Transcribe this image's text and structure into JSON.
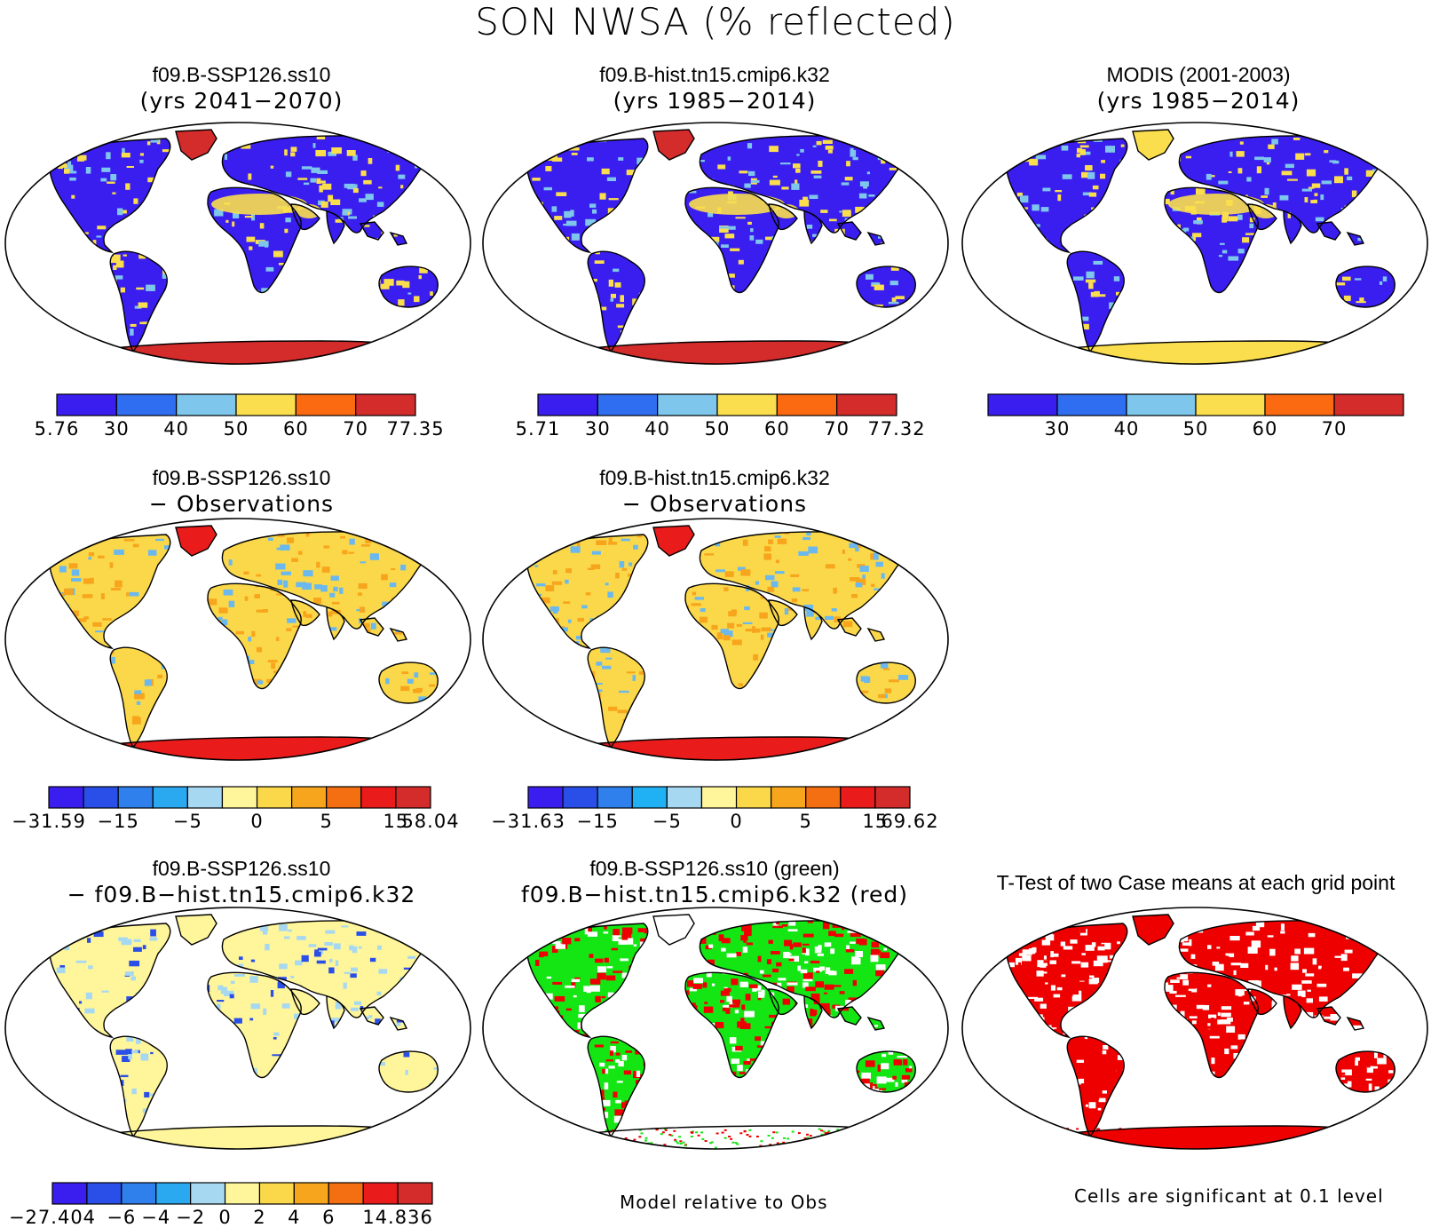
{
  "figure": {
    "title": "SON NWSA (% reflected)"
  },
  "colors": {
    "abs": [
      "#3a1ef0",
      "#2f6ef0",
      "#7ec6ec",
      "#fbde4d",
      "#fb6a10",
      "#d42b2b"
    ],
    "diff": [
      "#3a1ef0",
      "#2a4ee8",
      "#2f80ec",
      "#2aa8f0",
      "#a6d8f2",
      "#fff59a",
      "#fbd84a",
      "#f7a51c",
      "#f46f12",
      "#ea1b1b",
      "#d42b2b"
    ],
    "diff2": [
      "#3a1ef0",
      "#2a4ee8",
      "#2f80ec",
      "#20b0f4",
      "#a6d8f2",
      "#fff59a",
      "#fbd84a",
      "#f7a51c",
      "#f46f12",
      "#ea1b1b",
      "#d42b2b"
    ],
    "green": "#14e614",
    "red": "#ee0000"
  },
  "panels": [
    {
      "id": "p1",
      "title1": "f09.B-SSP126.ss10",
      "title2": "(yrs 2041−2070)",
      "fill": "#3a1ef0",
      "accent": "#fbde4d",
      "accent2": "#7ec6ec",
      "polar": "#d42b2b",
      "colorbar": {
        "labels": [
          "5.76",
          "30",
          "40",
          "50",
          "60",
          "70",
          "77.35"
        ]
      }
    },
    {
      "id": "p2",
      "title1": "f09.B-hist.tn15.cmip6.k32",
      "title2": "(yrs 1985−2014)",
      "fill": "#3a1ef0",
      "accent": "#fbde4d",
      "accent2": "#7ec6ec",
      "polar": "#d42b2b",
      "colorbar": {
        "labels": [
          "5.71",
          "30",
          "40",
          "50",
          "60",
          "70",
          "77.32"
        ]
      }
    },
    {
      "id": "p3",
      "title1": "MODIS (2001-2003)",
      "title2": "(yrs 1985−2014)",
      "fill": "#3a1ef0",
      "accent": "#fbde4d",
      "accent2": "#7ec6ec",
      "polar": "#fbde4d",
      "colorbar": {
        "labels": [
          "30",
          "40",
          "50",
          "60",
          "70"
        ]
      }
    },
    {
      "id": "p4",
      "title1": "f09.B-SSP126.ss10",
      "title2": "− Observations",
      "fill": "#fbd84a",
      "accent": "#f7a51c",
      "accent2": "#6ab8ee",
      "polar": "#ea1b1b",
      "colorbar": {
        "labels": [
          "−31.59",
          "−15",
          "−5",
          "0",
          "5",
          "15",
          "58.04"
        ]
      }
    },
    {
      "id": "p5",
      "title1": "f09.B-hist.tn15.cmip6.k32",
      "title2": "− Observations",
      "fill": "#fbd84a",
      "accent": "#f7a51c",
      "accent2": "#6ab8ee",
      "polar": "#ea1b1b",
      "colorbar": {
        "labels": [
          "−31.63",
          "−15",
          "−5",
          "0",
          "5",
          "15",
          "69.62"
        ]
      }
    },
    {
      "id": "p6",
      "title1": "f09.B-SSP126.ss10",
      "title2": "− f09.B−hist.tn15.cmip6.k32",
      "fill": "#fff59a",
      "accent": "#a6d8f2",
      "accent2": "#2a4ee8",
      "polar": "#fff59a",
      "colorbar": {
        "labels": [
          "−27.404",
          "−6",
          "−4",
          "−2",
          "0",
          "2",
          "4",
          "6",
          "14.836"
        ]
      }
    },
    {
      "id": "p7",
      "title1": "f09.B-SSP126.ss10 (green)",
      "title2": "f09.B−hist.tn15.cmip6.k32 (red)",
      "fill": "#14e614",
      "accent": "#ee0000",
      "accent2": "#ffffff",
      "polar": "#ffffff"
    },
    {
      "id": "p8",
      "title1": "T-Test of two Case means at each grid point",
      "title2": "",
      "fill": "#ee0000",
      "accent": "#ffffff",
      "accent2": "#ee0000",
      "polar": "#ee0000"
    }
  ],
  "notes": {
    "model_rel": "Model relative to Obs",
    "signif": "Cells are significant at 0.1 level"
  }
}
